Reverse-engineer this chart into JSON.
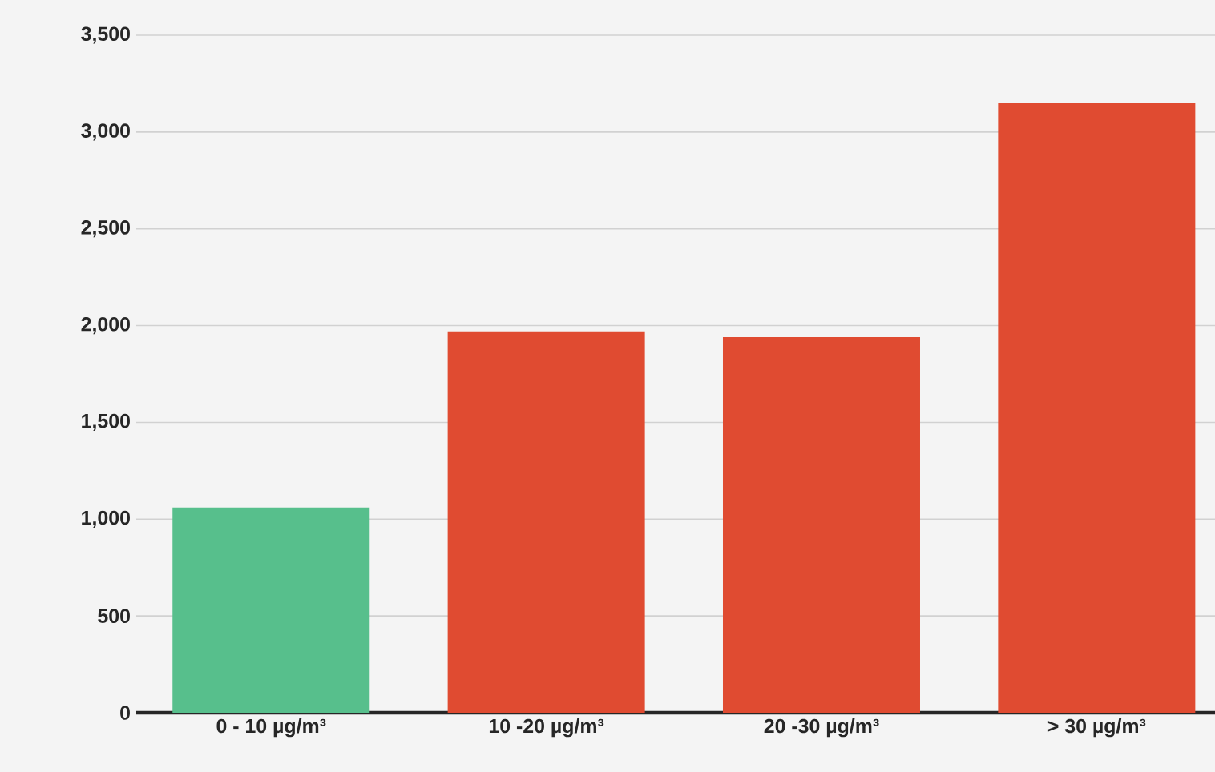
{
  "chart_data": {
    "type": "bar",
    "categories": [
      "0 - 10 µg/m³",
      "10 -20 µg/m³",
      "20 -30 µg/m³",
      "> 30 µg/m³"
    ],
    "values": [
      1060,
      1970,
      1940,
      3150
    ],
    "colors": [
      "#57bf8c",
      "#e04b31",
      "#e04b31",
      "#e04b31"
    ],
    "ylim": [
      0,
      3500
    ],
    "yticks": [
      0,
      500,
      {
        "value": 1000,
        "label": "1,000"
      },
      {
        "value": 1500,
        "label": "1,500"
      },
      {
        "value": 2000,
        "label": "2,000"
      },
      {
        "value": 2500,
        "label": "2,500"
      },
      {
        "value": 3000,
        "label": "3,000"
      },
      {
        "value": 3500,
        "label": "3,500"
      }
    ],
    "grid": "y"
  }
}
